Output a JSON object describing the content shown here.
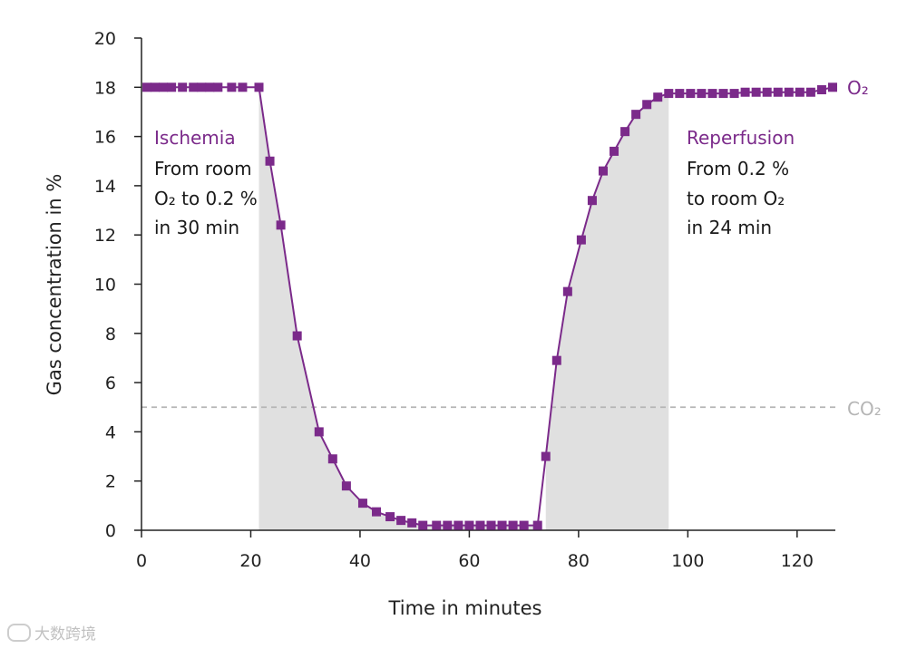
{
  "chart_data": {
    "type": "line",
    "xlabel": "Time in minutes",
    "ylabel": "Gas concentration in %",
    "xlim": [
      0,
      127
    ],
    "ylim": [
      0,
      20
    ],
    "x_ticks": [
      0,
      20,
      40,
      60,
      80,
      100,
      120
    ],
    "y_ticks": [
      0,
      2,
      4,
      6,
      8,
      10,
      12,
      14,
      16,
      18,
      20
    ],
    "grid": false,
    "series": [
      {
        "name": "O₂",
        "color": "#7b2a8a",
        "marker": "square",
        "points": [
          [
            1,
            18
          ],
          [
            2.5,
            18
          ],
          [
            4,
            18
          ],
          [
            5.5,
            18
          ],
          [
            7.5,
            18
          ],
          [
            9.5,
            18
          ],
          [
            11,
            18
          ],
          [
            12.5,
            18
          ],
          [
            14,
            18
          ],
          [
            16.5,
            18
          ],
          [
            18.5,
            18
          ],
          [
            21.5,
            18
          ],
          [
            23.5,
            15
          ],
          [
            25.5,
            12.4
          ],
          [
            28.5,
            7.9
          ],
          [
            32.5,
            4
          ],
          [
            35,
            2.9
          ],
          [
            37.5,
            1.8
          ],
          [
            40.5,
            1.1
          ],
          [
            43,
            0.75
          ],
          [
            45.5,
            0.55
          ],
          [
            47.5,
            0.4
          ],
          [
            49.5,
            0.3
          ],
          [
            51.5,
            0.2
          ],
          [
            54,
            0.2
          ],
          [
            56,
            0.2
          ],
          [
            58,
            0.2
          ],
          [
            60,
            0.2
          ],
          [
            62,
            0.2
          ],
          [
            64,
            0.2
          ],
          [
            66,
            0.2
          ],
          [
            68,
            0.2
          ],
          [
            70,
            0.2
          ],
          [
            72.5,
            0.2
          ],
          [
            74,
            3
          ],
          [
            76,
            6.9
          ],
          [
            78,
            9.7
          ],
          [
            80.5,
            11.8
          ],
          [
            82.5,
            13.4
          ],
          [
            84.5,
            14.6
          ],
          [
            86.5,
            15.4
          ],
          [
            88.5,
            16.2
          ],
          [
            90.5,
            16.9
          ],
          [
            92.5,
            17.3
          ],
          [
            94.5,
            17.6
          ],
          [
            96.5,
            17.75
          ],
          [
            98.5,
            17.75
          ],
          [
            100.5,
            17.75
          ],
          [
            102.5,
            17.75
          ],
          [
            104.5,
            17.75
          ],
          [
            106.5,
            17.75
          ],
          [
            108.5,
            17.75
          ],
          [
            110.5,
            17.8
          ],
          [
            112.5,
            17.8
          ],
          [
            114.5,
            17.8
          ],
          [
            116.5,
            17.8
          ],
          [
            118.5,
            17.8
          ],
          [
            120.5,
            17.8
          ],
          [
            122.5,
            17.8
          ],
          [
            124.5,
            17.9
          ],
          [
            126.5,
            18
          ]
        ]
      },
      {
        "name": "CO₂",
        "color": "#b5b5b5",
        "style": "dashed",
        "constant_value": 5
      }
    ],
    "shaded_regions": [
      {
        "x_start": 21.5,
        "x_end": 73,
        "color": "#e0e0e0"
      },
      {
        "x_start": 73,
        "x_end": 96.5,
        "color": "#e0e0e0"
      }
    ],
    "annotations": [
      {
        "heading": "Ischemia",
        "lines": [
          "From room",
          "O₂ to 0.2 %",
          "in 30 min"
        ]
      },
      {
        "heading": "Reperfusion",
        "lines": [
          "From 0.2 %",
          "to room O₂",
          "in 24 min"
        ]
      }
    ]
  },
  "colors": {
    "accent": "#7b2a8a",
    "shade": "#e0e0e0",
    "co2": "#b5b5b5",
    "axis": "#222222"
  },
  "watermark": {
    "icon": "watermark-logo-icon",
    "text": "大数跨境"
  }
}
